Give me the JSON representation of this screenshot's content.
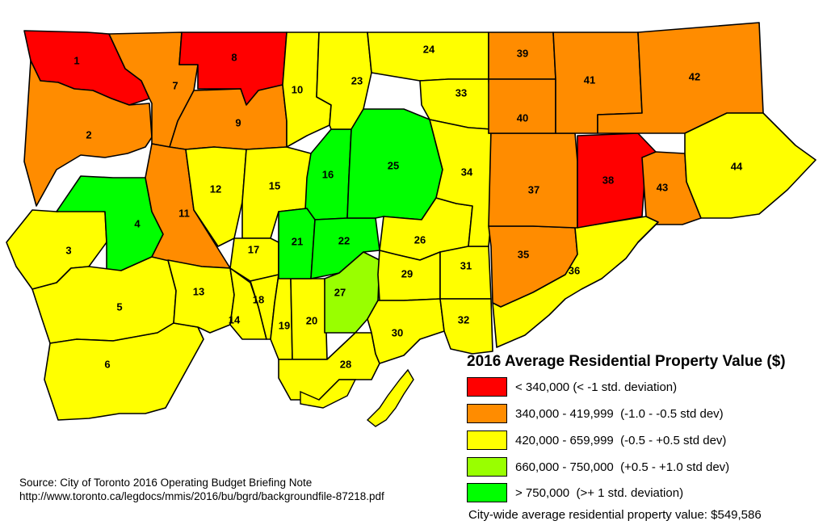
{
  "legend": {
    "title": "2016 Average Residential Property Value ($)",
    "items": [
      {
        "label": "< 340,000 (< -1 std. deviation)",
        "color": "#ff0000"
      },
      {
        "label": "340,000 - 419,999  (-1.0 - -0.5 std dev)",
        "color": "#ff8c00"
      },
      {
        "label": "420,000 - 659,999  (-0.5 - +0.5 std dev)",
        "color": "#ffff00"
      },
      {
        "label": "660,000 - 750,000  (+0.5 - +1.0 std dev)",
        "color": "#99ff00"
      },
      {
        "label": "> 750,000  (>+ 1 std. deviation)",
        "color": "#00ff00"
      }
    ]
  },
  "source": {
    "line1": "Source: City of Toronto 2016 Operating Budget Briefing Note",
    "line2": "http://www.toronto.ca/legdocs/mmis/2016/bu/bgrd/backgroundfile-87218.pdf"
  },
  "citywide_note": "City-wide average residential property value: $549,586",
  "wards": [
    {
      "id": "1",
      "class": 0
    },
    {
      "id": "2",
      "class": 1
    },
    {
      "id": "3",
      "class": 2
    },
    {
      "id": "4",
      "class": 4
    },
    {
      "id": "5",
      "class": 2
    },
    {
      "id": "6",
      "class": 2
    },
    {
      "id": "7",
      "class": 1
    },
    {
      "id": "8",
      "class": 0
    },
    {
      "id": "9",
      "class": 1
    },
    {
      "id": "10",
      "class": 2
    },
    {
      "id": "11",
      "class": 1
    },
    {
      "id": "12",
      "class": 2
    },
    {
      "id": "13",
      "class": 2
    },
    {
      "id": "14",
      "class": 2
    },
    {
      "id": "15",
      "class": 2
    },
    {
      "id": "16",
      "class": 4
    },
    {
      "id": "17",
      "class": 2
    },
    {
      "id": "18",
      "class": 2
    },
    {
      "id": "19",
      "class": 2
    },
    {
      "id": "20",
      "class": 2
    },
    {
      "id": "21",
      "class": 4
    },
    {
      "id": "22",
      "class": 4
    },
    {
      "id": "23",
      "class": 2
    },
    {
      "id": "24",
      "class": 2
    },
    {
      "id": "25",
      "class": 4
    },
    {
      "id": "26",
      "class": 2
    },
    {
      "id": "27",
      "class": 3
    },
    {
      "id": "28",
      "class": 2
    },
    {
      "id": "29",
      "class": 2
    },
    {
      "id": "30",
      "class": 2
    },
    {
      "id": "31",
      "class": 2
    },
    {
      "id": "32",
      "class": 2
    },
    {
      "id": "33",
      "class": 2
    },
    {
      "id": "34",
      "class": 2
    },
    {
      "id": "35",
      "class": 1
    },
    {
      "id": "36",
      "class": 2
    },
    {
      "id": "37",
      "class": 1
    },
    {
      "id": "38",
      "class": 0
    },
    {
      "id": "39",
      "class": 1
    },
    {
      "id": "40",
      "class": 1
    },
    {
      "id": "41",
      "class": 1
    },
    {
      "id": "42",
      "class": 1
    },
    {
      "id": "43",
      "class": 1
    },
    {
      "id": "44",
      "class": 2
    }
  ]
}
